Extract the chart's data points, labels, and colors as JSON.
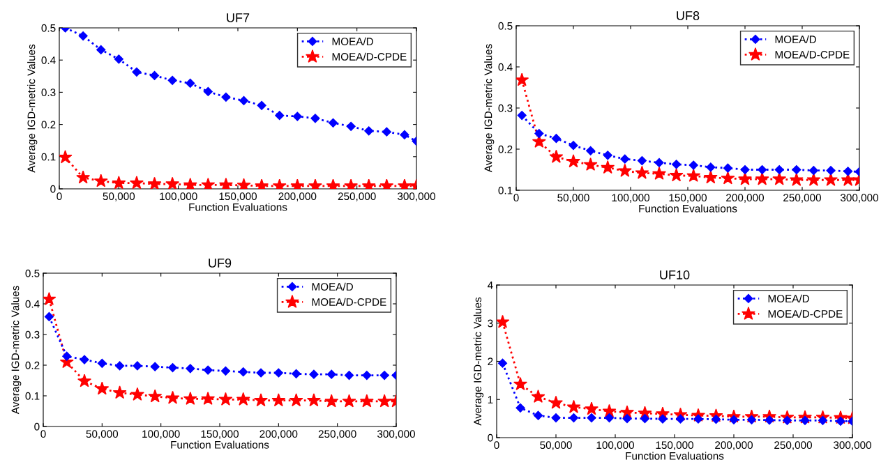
{
  "chart_data": [
    {
      "type": "line",
      "title": "UF7",
      "xlabel": "Function Evaluations",
      "ylabel": "Average IGD-metric Values",
      "x": [
        5000,
        20000,
        35000,
        50000,
        65000,
        80000,
        95000,
        110000,
        125000,
        140000,
        155000,
        170000,
        185000,
        200000,
        215000,
        230000,
        245000,
        260000,
        275000,
        290000,
        300000
      ],
      "series": [
        {
          "name": "MOEA/D",
          "color": "#0000ff",
          "marker": "diamond",
          "values": [
            0.5,
            0.475,
            0.432,
            0.403,
            0.363,
            0.352,
            0.337,
            0.328,
            0.302,
            0.285,
            0.274,
            0.259,
            0.228,
            0.225,
            0.219,
            0.205,
            0.194,
            0.18,
            0.177,
            0.168,
            0.148
          ]
        },
        {
          "name": "MOEA/D-CPDE",
          "color": "#ff0000",
          "marker": "star",
          "values": [
            0.098,
            0.035,
            0.024,
            0.018,
            0.018,
            0.015,
            0.015,
            0.012,
            0.012,
            0.012,
            0.011,
            0.009,
            0.009,
            0.009,
            0.009,
            0.009,
            0.009,
            0.009,
            0.009,
            0.009,
            0.009
          ]
        }
      ],
      "xlim": [
        0,
        300000
      ],
      "xticks": [
        {
          "value": 0,
          "label": "0"
        },
        {
          "value": 50000,
          "label": "50,000"
        },
        {
          "value": 100000,
          "label": "100,000"
        },
        {
          "value": 150000,
          "label": "150,000"
        },
        {
          "value": 200000,
          "label": "200,000"
        },
        {
          "value": 250000,
          "label": "250,000"
        },
        {
          "value": 300000,
          "label": "300,000"
        }
      ],
      "ylim": [
        0,
        0.5
      ],
      "yticks": [
        0,
        0.1,
        0.2,
        0.3,
        0.4,
        0.5
      ],
      "grid": false,
      "legend": "top right",
      "line_style": "dotted"
    },
    {
      "type": "line",
      "title": "UF8",
      "xlabel": "Function Evaluations",
      "ylabel": "Average IGD-metric Values",
      "x": [
        5000,
        20000,
        35000,
        50000,
        65000,
        80000,
        95000,
        110000,
        125000,
        140000,
        155000,
        170000,
        185000,
        200000,
        215000,
        230000,
        245000,
        260000,
        275000,
        290000,
        300000
      ],
      "series": [
        {
          "name": "MOEA/D",
          "color": "#0000ff",
          "marker": "diamond",
          "values": [
            0.282,
            0.238,
            0.226,
            0.209,
            0.196,
            0.185,
            0.176,
            0.172,
            0.167,
            0.163,
            0.161,
            0.156,
            0.154,
            0.15,
            0.15,
            0.15,
            0.15,
            0.148,
            0.148,
            0.146,
            0.145
          ]
        },
        {
          "name": "MOEA/D-CPDE",
          "color": "#ff0000",
          "marker": "star",
          "values": [
            0.368,
            0.218,
            0.181,
            0.17,
            0.162,
            0.155,
            0.147,
            0.142,
            0.14,
            0.136,
            0.135,
            0.131,
            0.129,
            0.127,
            0.127,
            0.127,
            0.125,
            0.125,
            0.125,
            0.125,
            0.125
          ]
        }
      ],
      "xlim": [
        0,
        300000
      ],
      "xticks": [
        {
          "value": 0,
          "label": "0"
        },
        {
          "value": 50000,
          "label": "50,000"
        },
        {
          "value": 100000,
          "label": "100,000"
        },
        {
          "value": 150000,
          "label": "150,000"
        },
        {
          "value": 200000,
          "label": "200,000"
        },
        {
          "value": 250000,
          "label": "250,000"
        },
        {
          "value": 300000,
          "label": "300,000"
        }
      ],
      "ylim": [
        0.1,
        0.5
      ],
      "yticks": [
        0.1,
        0.2,
        0.3,
        0.4,
        0.5
      ],
      "grid": false,
      "legend": "top right",
      "line_style": "dotted"
    },
    {
      "type": "line",
      "title": "UF9",
      "xlabel": "Function Evaluations",
      "ylabel": "Average IGD-metric Values",
      "x": [
        5000,
        20000,
        35000,
        50000,
        65000,
        80000,
        95000,
        110000,
        125000,
        140000,
        155000,
        170000,
        185000,
        200000,
        215000,
        230000,
        245000,
        260000,
        275000,
        290000,
        300000
      ],
      "series": [
        {
          "name": "MOEA/D",
          "color": "#0000ff",
          "marker": "diamond",
          "values": [
            0.358,
            0.229,
            0.218,
            0.206,
            0.198,
            0.198,
            0.195,
            0.192,
            0.189,
            0.184,
            0.181,
            0.178,
            0.175,
            0.175,
            0.172,
            0.17,
            0.17,
            0.167,
            0.167,
            0.167,
            0.167
          ]
        },
        {
          "name": "MOEA/D-CPDE",
          "color": "#ff0000",
          "marker": "star",
          "values": [
            0.415,
            0.21,
            0.148,
            0.123,
            0.11,
            0.104,
            0.098,
            0.093,
            0.09,
            0.09,
            0.088,
            0.088,
            0.085,
            0.085,
            0.085,
            0.085,
            0.082,
            0.082,
            0.082,
            0.082,
            0.082
          ]
        }
      ],
      "xlim": [
        0,
        300000
      ],
      "xticks": [
        {
          "value": 0,
          "label": "0"
        },
        {
          "value": 50000,
          "label": "50,000"
        },
        {
          "value": 100000,
          "label": "100,000"
        },
        {
          "value": 150000,
          "label": "150,000"
        },
        {
          "value": 200000,
          "label": "200,000"
        },
        {
          "value": 250000,
          "label": "250,000"
        },
        {
          "value": 300000,
          "label": "300,000"
        }
      ],
      "ylim": [
        0,
        0.5
      ],
      "yticks": [
        0,
        0.1,
        0.2,
        0.3,
        0.4,
        0.5
      ],
      "grid": false,
      "legend": "top right",
      "line_style": "dotted"
    },
    {
      "type": "line",
      "title": "UF10",
      "xlabel": "Function Evaluations",
      "ylabel": "Average IGD-metric Values",
      "x": [
        5000,
        20000,
        35000,
        50000,
        65000,
        80000,
        95000,
        110000,
        125000,
        140000,
        155000,
        170000,
        185000,
        200000,
        215000,
        230000,
        245000,
        260000,
        275000,
        290000,
        300000
      ],
      "series": [
        {
          "name": "MOEA/D",
          "color": "#0000ff",
          "marker": "diamond",
          "values": [
            1.95,
            0.78,
            0.58,
            0.52,
            0.52,
            0.52,
            0.52,
            0.5,
            0.5,
            0.49,
            0.49,
            0.49,
            0.48,
            0.47,
            0.47,
            0.46,
            0.45,
            0.45,
            0.45,
            0.43,
            0.43
          ]
        },
        {
          "name": "MOEA/D-CPDE",
          "color": "#ff0000",
          "marker": "star",
          "values": [
            3.03,
            1.4,
            1.07,
            0.91,
            0.8,
            0.75,
            0.69,
            0.66,
            0.64,
            0.62,
            0.6,
            0.58,
            0.57,
            0.55,
            0.55,
            0.55,
            0.53,
            0.53,
            0.53,
            0.52,
            0.51
          ]
        }
      ],
      "xlim": [
        0,
        300000
      ],
      "xticks": [
        {
          "value": 0,
          "label": "0"
        },
        {
          "value": 50000,
          "label": "50,000"
        },
        {
          "value": 100000,
          "label": "100,000"
        },
        {
          "value": 150000,
          "label": "150,000"
        },
        {
          "value": 200000,
          "label": "200,000"
        },
        {
          "value": 250000,
          "label": "250,000"
        },
        {
          "value": 300000,
          "label": "300,000"
        }
      ],
      "ylim": [
        0,
        4
      ],
      "yticks": [
        0,
        1,
        2,
        3,
        4
      ],
      "grid": false,
      "legend": "top right",
      "line_style": "dotted"
    }
  ]
}
